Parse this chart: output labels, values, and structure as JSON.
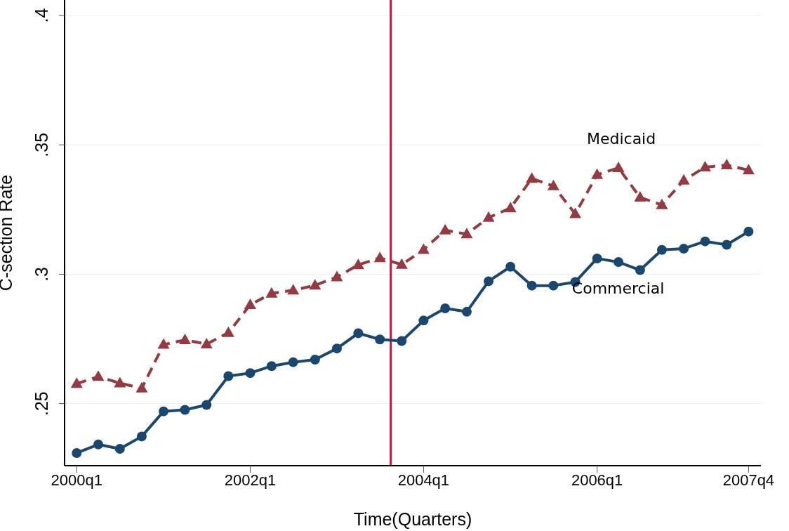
{
  "chart_data": {
    "type": "line",
    "xlabel": "Time(Quarters)",
    "ylabel": "C-section Rate",
    "x": [
      "2000-01",
      "2000-04",
      "2000-07",
      "2000-10",
      "2001-01",
      "2001-04",
      "2001-07",
      "2001-10",
      "2002-01",
      "2002-04",
      "2002-07",
      "2002-10",
      "2003-01",
      "2003-04",
      "2003-07",
      "2003-10",
      "2004-01",
      "2004-04",
      "2004-07",
      "2004-10",
      "2005-01",
      "2005-04",
      "2005-07",
      "2005-10",
      "2006-01",
      "2006-04",
      "2006-07",
      "2006-10",
      "2007-01",
      "2007-04",
      "2007-07",
      "2007-10"
    ],
    "xlim": [
      "1999-11-11",
      "2007-11-22"
    ],
    "xticks": [
      {
        "value": "2000-01",
        "label": "2000q1"
      },
      {
        "value": "2002-01",
        "label": "2002q1"
      },
      {
        "value": "2004-01",
        "label": "2004q1"
      },
      {
        "value": "2006-01",
        "label": "2006q1"
      },
      {
        "value": "2007-10",
        "label": "2007q4"
      }
    ],
    "ylim": [
      0.226,
      0.406
    ],
    "yticks": [
      {
        "value": 0.25,
        "label": ".25"
      },
      {
        "value": 0.3,
        "label": ".3"
      },
      {
        "value": 0.35,
        "label": ".35"
      },
      {
        "value": 0.4,
        "label": ".4"
      }
    ],
    "grid": "y",
    "legend": false,
    "series": [
      {
        "name": "Medicaid",
        "color": "#943a40",
        "marker": "triangle",
        "line_style": "dashed",
        "values": [
          0.2577,
          0.2604,
          0.2579,
          0.2559,
          0.2728,
          0.2746,
          0.273,
          0.2774,
          0.2882,
          0.2926,
          0.2938,
          0.2957,
          0.2989,
          0.3036,
          0.3063,
          0.3037,
          0.3095,
          0.317,
          0.3155,
          0.3219,
          0.3256,
          0.337,
          0.3341,
          0.3233,
          0.3385,
          0.3411,
          0.3297,
          0.3268,
          0.3363,
          0.3414,
          0.3422,
          0.3402
        ]
      },
      {
        "name": "Commercial",
        "color": "#1a476f",
        "marker": "circle",
        "line_style": "solid",
        "values": [
          0.2309,
          0.2342,
          0.2325,
          0.2373,
          0.247,
          0.2476,
          0.2495,
          0.2606,
          0.2618,
          0.2645,
          0.266,
          0.267,
          0.2713,
          0.2772,
          0.2748,
          0.2742,
          0.2821,
          0.2868,
          0.2855,
          0.2973,
          0.3029,
          0.2956,
          0.2956,
          0.297,
          0.3061,
          0.3047,
          0.3016,
          0.3094,
          0.3099,
          0.3127,
          0.3114,
          0.3165
        ]
      }
    ],
    "ref_lines": [
      {
        "axis": "x",
        "value": "2003-08-16",
        "color": "#d0103a"
      }
    ]
  }
}
